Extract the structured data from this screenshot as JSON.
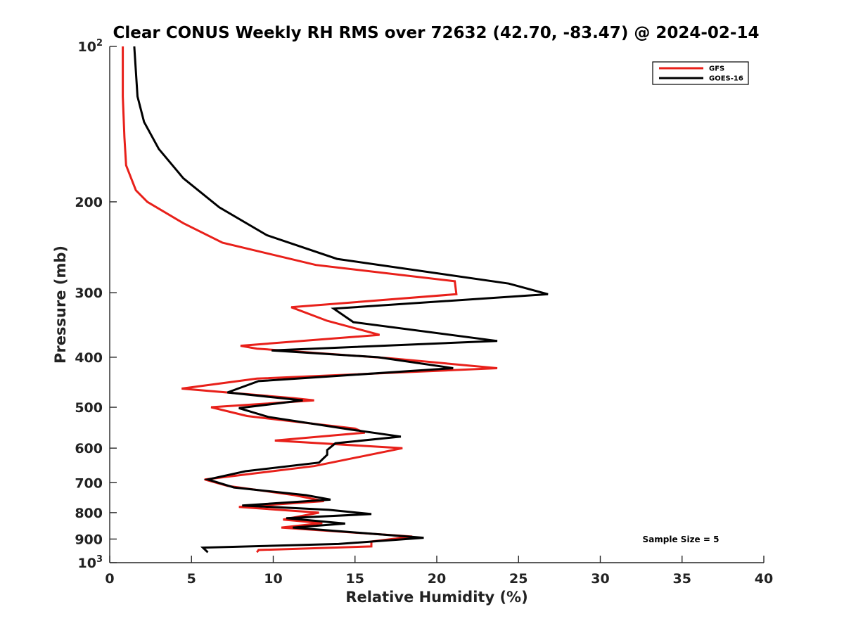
{
  "chart_data": {
    "type": "line",
    "title": "Clear CONUS Weekly RH RMS over 72632 (42.70, -83.47) @ 2024-02-14",
    "xlabel": "Relative Humidity (%)",
    "ylabel": "Pressure (mb)",
    "xlim": [
      0,
      40
    ],
    "ylim": [
      100,
      1000
    ],
    "y_scale": "log",
    "y_reversed": true,
    "x_ticks": [
      "0",
      "5",
      "10",
      "15",
      "20",
      "25",
      "30",
      "35",
      "40"
    ],
    "y_ticks": [
      {
        "value": 100,
        "base": "10",
        "exp": "2"
      },
      {
        "value": 200,
        "label": "200"
      },
      {
        "value": 300,
        "label": "300"
      },
      {
        "value": 400,
        "label": "400"
      },
      {
        "value": 500,
        "label": "500"
      },
      {
        "value": 600,
        "label": "600"
      },
      {
        "value": 700,
        "label": "700"
      },
      {
        "value": 800,
        "label": "800"
      },
      {
        "value": 900,
        "label": "900"
      },
      {
        "value": 1000,
        "base": "10",
        "exp": "3"
      }
    ],
    "legend_position": "top-right",
    "annotation": "Sample Size = 5",
    "series": [
      {
        "name": "GFS",
        "color": "#e8201a",
        "points": [
          [
            0.8,
            100
          ],
          [
            0.8,
            125
          ],
          [
            0.9,
            150
          ],
          [
            1.0,
            170
          ],
          [
            1.6,
            190
          ],
          [
            2.3,
            200
          ],
          [
            4.5,
            220
          ],
          [
            6.9,
            240
          ],
          [
            12.6,
            265
          ],
          [
            21.1,
            285
          ],
          [
            21.2,
            302
          ],
          [
            11.1,
            320
          ],
          [
            13.3,
            340
          ],
          [
            16.5,
            362
          ],
          [
            8.0,
            380
          ],
          [
            9.0,
            385
          ],
          [
            17.2,
            402
          ],
          [
            23.7,
            420
          ],
          [
            9.0,
            440
          ],
          [
            4.4,
            460
          ],
          [
            11.2,
            480
          ],
          [
            12.5,
            485
          ],
          [
            6.2,
            500
          ],
          [
            8.4,
            520
          ],
          [
            15.0,
            550
          ],
          [
            15.6,
            560
          ],
          [
            10.1,
            580
          ],
          [
            17.9,
            600
          ],
          [
            12.5,
            650
          ],
          [
            5.8,
            690
          ],
          [
            7.2,
            710
          ],
          [
            11.3,
            740
          ],
          [
            13.1,
            760
          ],
          [
            7.9,
            780
          ],
          [
            12.8,
            800
          ],
          [
            10.6,
            825
          ],
          [
            13.0,
            838
          ],
          [
            10.5,
            855
          ],
          [
            18.5,
            890
          ],
          [
            16.0,
            910
          ],
          [
            16.0,
            930
          ],
          [
            9.1,
            945
          ],
          [
            9.0,
            955
          ]
        ]
      },
      {
        "name": "GOES-16",
        "color": "#000000",
        "points": [
          [
            1.5,
            100
          ],
          [
            1.7,
            125
          ],
          [
            2.1,
            140
          ],
          [
            3.0,
            158
          ],
          [
            4.5,
            180
          ],
          [
            6.7,
            205
          ],
          [
            9.6,
            232
          ],
          [
            13.9,
            258
          ],
          [
            24.4,
            288
          ],
          [
            26.8,
            302
          ],
          [
            13.7,
            322
          ],
          [
            14.9,
            342
          ],
          [
            23.7,
            372
          ],
          [
            9.9,
            388
          ],
          [
            16.4,
            400
          ],
          [
            21.0,
            420
          ],
          [
            9.1,
            445
          ],
          [
            7.2,
            468
          ],
          [
            11.8,
            485
          ],
          [
            7.9,
            502
          ],
          [
            9.7,
            522
          ],
          [
            14.7,
            552
          ],
          [
            17.8,
            570
          ],
          [
            13.8,
            587
          ],
          [
            13.3,
            605
          ],
          [
            13.3,
            618
          ],
          [
            12.8,
            640
          ],
          [
            8.3,
            665
          ],
          [
            6.0,
            690
          ],
          [
            7.6,
            715
          ],
          [
            12.0,
            740
          ],
          [
            13.5,
            755
          ],
          [
            8.1,
            775
          ],
          [
            13.4,
            790
          ],
          [
            16.0,
            805
          ],
          [
            10.8,
            820
          ],
          [
            14.4,
            840
          ],
          [
            11.2,
            855
          ],
          [
            19.2,
            895
          ],
          [
            14.0,
            920
          ],
          [
            5.7,
            935
          ],
          [
            6.0,
            955
          ]
        ]
      }
    ]
  }
}
